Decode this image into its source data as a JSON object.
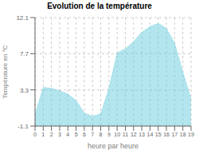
{
  "chart_data": {
    "type": "area",
    "title": "Evolution de la température",
    "xlabel": "heure par heure",
    "ylabel": "Température en °C",
    "x": [
      0,
      1,
      2,
      3,
      4,
      5,
      6,
      7,
      8,
      9,
      10,
      11,
      12,
      13,
      14,
      15,
      16,
      17,
      18,
      19
    ],
    "values": [
      0.3,
      3.6,
      3.5,
      3.2,
      2.8,
      2.0,
      0.5,
      0.1,
      0.4,
      3.5,
      7.8,
      8.3,
      9.2,
      10.3,
      11.0,
      11.4,
      10.8,
      9.0,
      5.5,
      2.2
    ],
    "color": "#66ccdd",
    "line_style": "dotted",
    "xlim": [
      0,
      19
    ],
    "xticks": [
      0,
      1,
      2,
      3,
      4,
      5,
      6,
      7,
      8,
      9,
      10,
      11,
      12,
      13,
      14,
      15,
      16,
      17,
      18,
      19
    ],
    "ylim": [
      -1.1,
      12.1
    ],
    "yticks": [
      -1.1,
      3.3,
      7.7,
      12.1
    ],
    "grid": true
  }
}
